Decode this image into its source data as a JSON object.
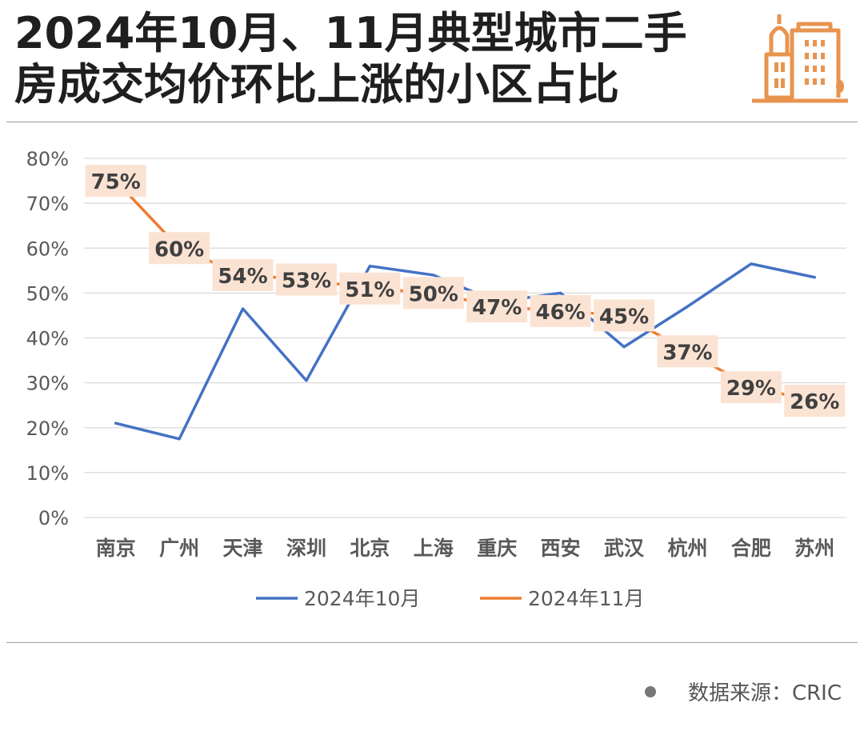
{
  "title": {
    "line1": "2024年10月、11月典型城市二手",
    "line2": "房成交均价环比上涨的小区占比"
  },
  "source": "数据来源：CRIC",
  "chart_data": {
    "type": "line",
    "categories": [
      "南京",
      "广州",
      "天津",
      "深圳",
      "北京",
      "上海",
      "重庆",
      "西安",
      "武汉",
      "杭州",
      "合肥",
      "苏州"
    ],
    "series": [
      {
        "name": "2024年10月",
        "color": "#4472c4",
        "values": [
          21,
          17.5,
          46.5,
          30.5,
          56,
          54,
          48,
          50,
          38,
          47,
          56.5,
          53.5
        ]
      },
      {
        "name": "2024年11月",
        "color": "#ed7d31",
        "values": [
          75,
          60,
          54,
          53,
          51,
          50,
          47,
          46,
          45,
          37,
          29,
          26
        ],
        "labels": [
          "75%",
          "60%",
          "54%",
          "53%",
          "51%",
          "50%",
          "47%",
          "46%",
          "45%",
          "37%",
          "29%",
          "26%"
        ]
      }
    ],
    "yticks": [
      "0%",
      "10%",
      "20%",
      "30%",
      "40%",
      "50%",
      "60%",
      "70%",
      "80%"
    ],
    "ylim": [
      0,
      80
    ],
    "grid": true,
    "legend": "bottom",
    "label_bg": "#fbe3d3"
  }
}
